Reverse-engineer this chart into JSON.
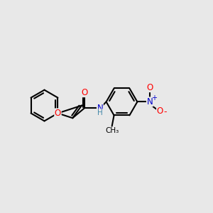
{
  "background_color": "#e8e8e8",
  "bond_lw": 1.5,
  "bond_color": "#000000",
  "o_color": "#ff0000",
  "n_color": "#0000cc",
  "font_size": 8.5,
  "xlim": [
    -0.5,
    9.5
  ],
  "ylim": [
    1.0,
    6.5
  ]
}
